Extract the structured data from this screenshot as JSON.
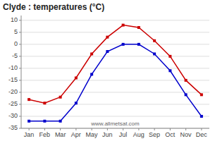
{
  "chart_data": {
    "type": "line",
    "title": "Clyde : temperatures (°C)",
    "annotation": "www.allmetsat.com",
    "categories": [
      "Jan",
      "Feb",
      "Mar",
      "Apr",
      "May",
      "Jun",
      "Jul",
      "Aug",
      "Sep",
      "Oct",
      "Nov",
      "Dec"
    ],
    "series": [
      {
        "color": "#cc0000",
        "marker": "square",
        "line_style": "solid",
        "values": [
          -23,
          -24.5,
          -22,
          -14,
          -4,
          3,
          8,
          7,
          1.5,
          -5,
          -15,
          -21
        ]
      },
      {
        "color": "#0000cc",
        "marker": "square",
        "line_style": "solid",
        "values": [
          -32,
          -32,
          -32,
          -24.5,
          -12.5,
          -3,
          0,
          0,
          -4,
          -11,
          -21,
          -30
        ]
      }
    ],
    "ylim": [
      -35,
      12
    ],
    "yticks": [
      -35,
      -30,
      -25,
      -20,
      -15,
      -10,
      -5,
      0,
      5,
      10
    ],
    "grid": true
  }
}
